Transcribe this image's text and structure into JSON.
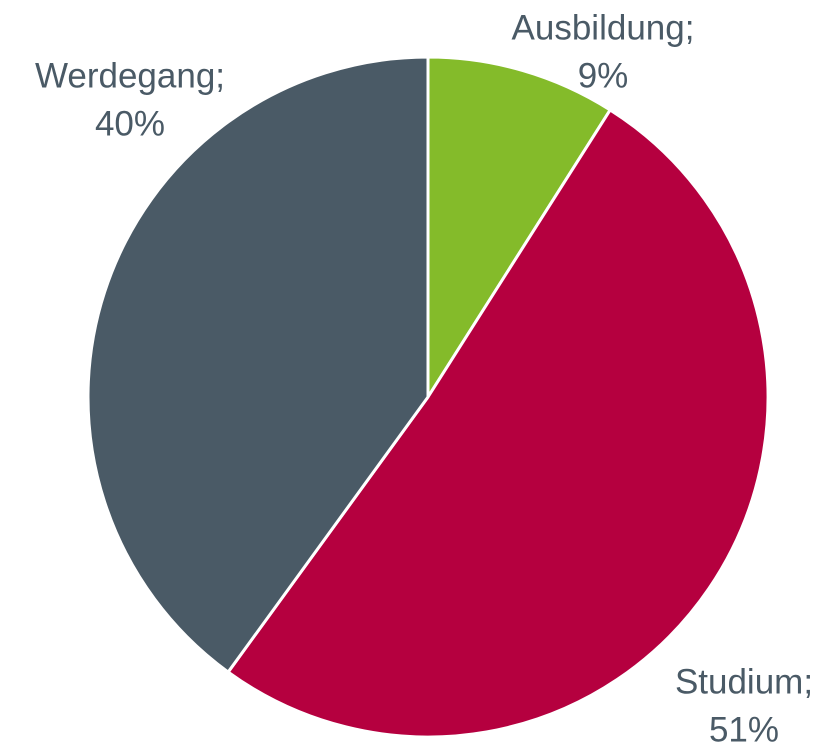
{
  "chart_data": {
    "type": "pie",
    "categories": [
      "Ausbildung;",
      "Studium;",
      "Werdegang;"
    ],
    "values": [
      9,
      51,
      40
    ],
    "value_labels": [
      "9%",
      "51%",
      "40%"
    ],
    "colors": [
      "#84bb2a",
      "#b5003f",
      "#4a5a66"
    ]
  }
}
